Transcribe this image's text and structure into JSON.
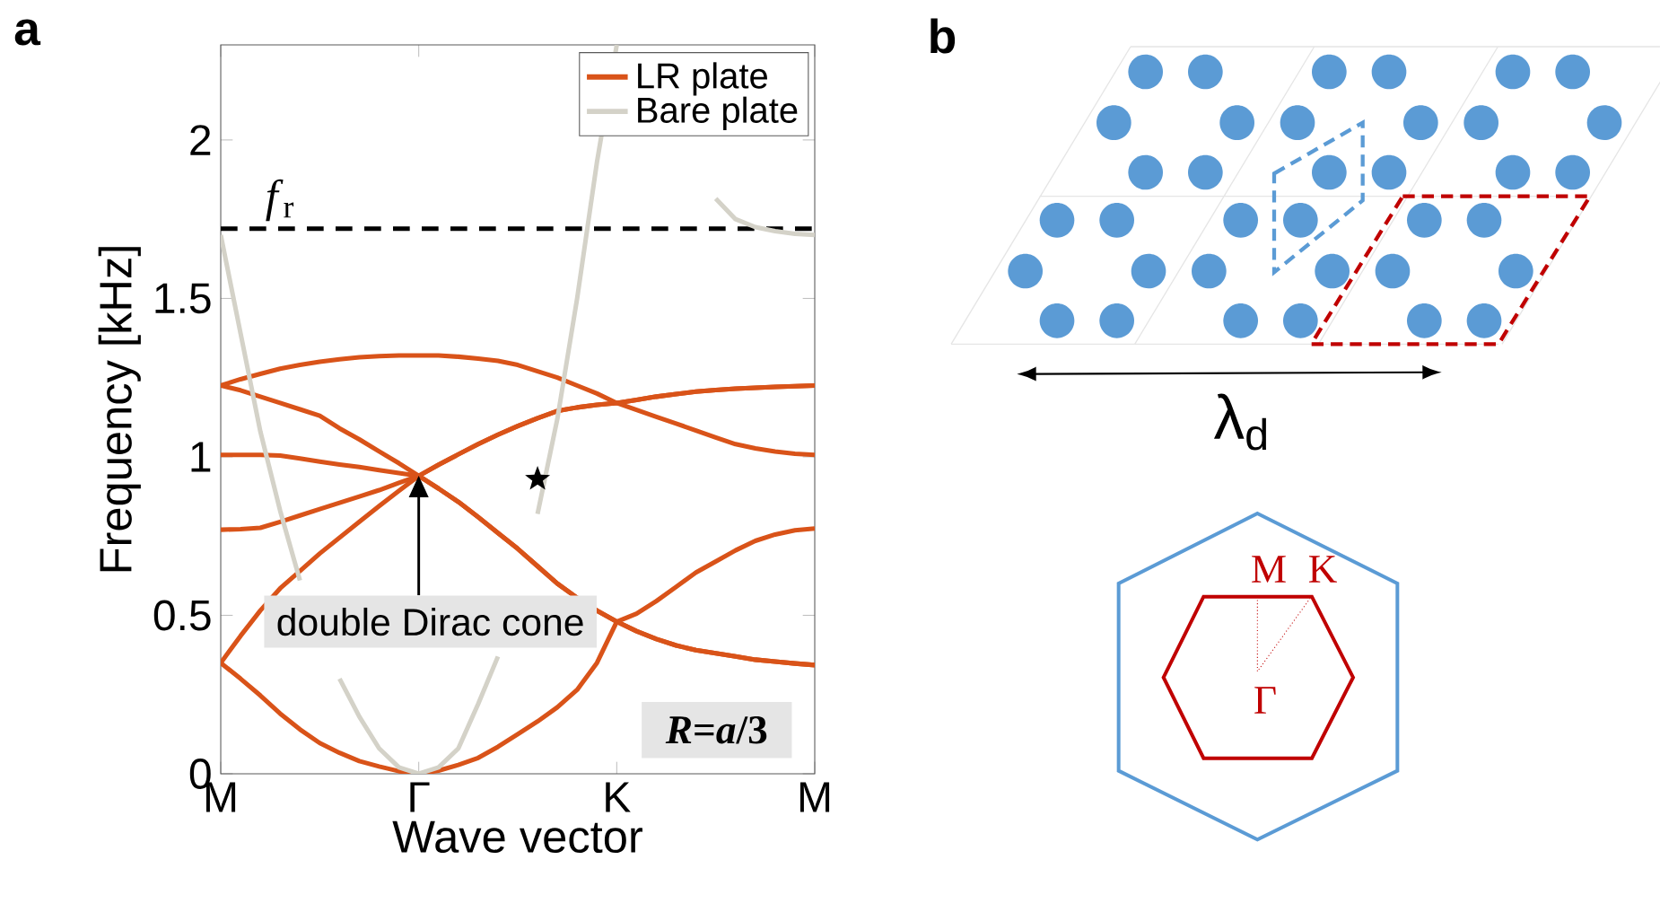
{
  "chart_data": {
    "type": "line",
    "xlabel": "Wave vector",
    "ylabel": "Frequency [kHz]",
    "ylim": [
      0,
      2.3
    ],
    "categories": [
      "M",
      null,
      null,
      null,
      null,
      null,
      null,
      null,
      null,
      null,
      "Γ",
      null,
      null,
      null,
      null,
      null,
      null,
      null,
      null,
      null,
      "K",
      null,
      null,
      null,
      null,
      null,
      null,
      null,
      null,
      null,
      "M"
    ],
    "yticks": [
      0,
      0.5,
      1,
      1.5,
      2
    ],
    "legend": "top right",
    "series": [
      {
        "name": "LR plate",
        "color": "#d95319",
        "values": [
          0.35,
          0.3,
          0.247,
          0.19,
          0.14,
          0.097,
          0.066,
          0.04,
          0.023,
          0.008,
          0,
          0.01,
          0.028,
          0.05,
          0.085,
          0.125,
          0.165,
          0.21,
          0.265,
          0.35,
          0.48,
          0.45,
          0.425,
          0.405,
          0.39,
          0.38,
          0.37,
          0.36,
          0.354,
          0.348,
          0.343
        ]
      },
      {
        "color": "#d95319",
        "values": [
          0.35,
          0.435,
          0.515,
          0.585,
          0.64,
          0.695,
          0.745,
          0.795,
          0.845,
          0.893,
          0.94,
          0.9,
          0.858,
          0.81,
          0.76,
          0.71,
          0.655,
          0.6,
          0.555,
          0.515,
          0.48,
          0.45,
          0.425,
          0.405,
          0.39,
          0.38,
          0.37,
          0.36,
          0.354,
          0.348,
          0.343
        ]
      },
      {
        "color": "#d95319",
        "values": [
          0.77,
          0.772,
          0.776,
          0.795,
          0.815,
          0.835,
          0.855,
          0.875,
          0.895,
          0.918,
          0.94,
          0.9,
          0.858,
          0.81,
          0.76,
          0.71,
          0.655,
          0.6,
          0.555,
          0.515,
          0.48,
          0.505,
          0.545,
          0.59,
          0.635,
          0.67,
          0.705,
          0.735,
          0.755,
          0.768,
          0.774
        ]
      },
      {
        "color": "#d95319",
        "values": [
          1.006,
          1.006,
          1.006,
          1.004,
          0.995,
          0.985,
          0.976,
          0.968,
          0.958,
          0.949,
          0.94,
          0.975,
          1.008,
          1.04,
          1.07,
          1.097,
          1.122,
          1.145,
          1.156,
          1.164,
          1.17,
          1.18,
          1.19,
          1.198,
          1.206,
          1.211,
          1.215,
          1.218,
          1.221,
          1.223,
          1.225
        ]
      },
      {
        "color": "#d95319",
        "values": [
          1.225,
          1.21,
          1.19,
          1.17,
          1.15,
          1.13,
          1.09,
          1.055,
          1.017,
          0.98,
          0.94,
          0.975,
          1.008,
          1.04,
          1.07,
          1.097,
          1.122,
          1.145,
          1.156,
          1.164,
          1.17,
          1.18,
          1.19,
          1.198,
          1.206,
          1.211,
          1.215,
          1.218,
          1.221,
          1.223,
          1.225
        ]
      },
      {
        "color": "#d95319",
        "values": [
          1.225,
          1.245,
          1.262,
          1.278,
          1.29,
          1.3,
          1.308,
          1.314,
          1.318,
          1.32,
          1.32,
          1.32,
          1.316,
          1.31,
          1.303,
          1.29,
          1.27,
          1.25,
          1.225,
          1.2,
          1.17,
          1.148,
          1.126,
          1.105,
          1.083,
          1.061,
          1.04,
          1.027,
          1.017,
          1.01,
          1.006
        ]
      },
      {
        "name": "Bare plate",
        "color": "#d4d2c8",
        "values": [
          1.7,
          1.39,
          1.08,
          0.83,
          0.61,
          null,
          0.3,
          0.18,
          0.08,
          0.02,
          0,
          0.02,
          0.08,
          0.22,
          0.37,
          null,
          0.82,
          1.12,
          1.5,
          1.93,
          2.3,
          null,
          null,
          null,
          null,
          null,
          null,
          null,
          null,
          null,
          null
        ]
      },
      {
        "color": "#d4d2c8",
        "values": [
          null,
          null,
          null,
          null,
          null,
          null,
          null,
          null,
          null,
          null,
          null,
          null,
          null,
          null,
          null,
          null,
          null,
          null,
          null,
          null,
          null,
          null,
          null,
          null,
          null,
          1.815,
          1.75,
          1.725,
          1.712,
          1.704,
          1.7
        ]
      },
      {
        "type": "scatter",
        "color": "#000000",
        "marker": "star",
        "values": [
          null,
          null,
          null,
          null,
          null,
          null,
          null,
          null,
          null,
          null,
          null,
          null,
          null,
          null,
          null,
          null,
          0.93,
          null,
          null,
          null,
          null,
          null,
          null,
          null,
          null,
          null,
          null,
          null,
          null,
          null,
          null
        ]
      }
    ],
    "ref_lines": [
      {
        "axis": "y",
        "value": 1.72,
        "label": "*f*$_{r}$",
        "color": "#000000",
        "line_style": "dashed"
      }
    ],
    "annotations": [
      "double Dirac cone",
      "*R*=*a*/3",
      "a",
      "b",
      "λ$_{d}$",
      "M",
      "K",
      "Γ"
    ]
  }
}
